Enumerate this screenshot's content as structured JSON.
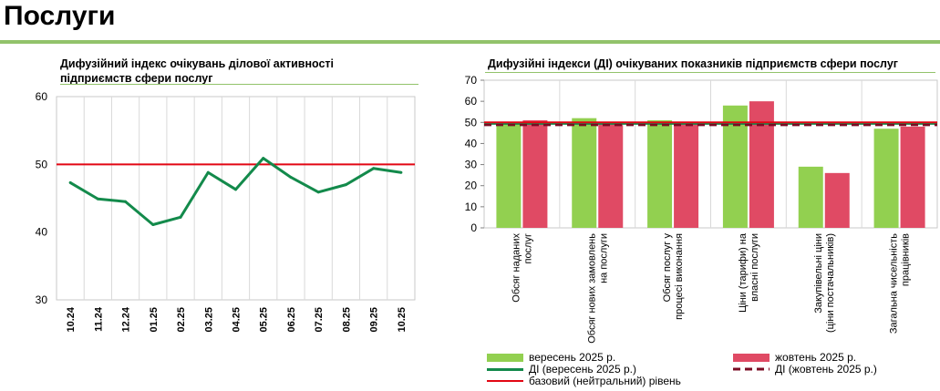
{
  "page": {
    "title": "Послуги"
  },
  "colors": {
    "green": "#92d050",
    "dark_green": "#138a4b",
    "red": "#e20613",
    "pink": "#e04a64",
    "dark_red": "#7a0b23",
    "accent_rule": "#92c36b"
  },
  "chart_data": [
    {
      "type": "line",
      "title": "Дифузійний індекс очікувань ділової активності підприємств сфери послуг",
      "title_lines": [
        "Дифузійний індекс очікувань ділової активності",
        "підприємств сфери послуг"
      ],
      "categories": [
        "10.24",
        "11.24",
        "12.24",
        "01.25",
        "02.25",
        "03.25",
        "04.25",
        "05.25",
        "06.25",
        "07.25",
        "08.25",
        "09.25",
        "10.25"
      ],
      "series": [
        {
          "values": [
            47.3,
            44.9,
            44.5,
            41.1,
            42.2,
            48.8,
            46.3,
            50.9,
            48.1,
            45.9,
            47.0,
            49.4,
            48.8
          ]
        }
      ],
      "reference_line": 50,
      "ylim": [
        30,
        60
      ],
      "yticks": [
        30,
        40,
        50,
        60
      ],
      "grid": "vertical"
    },
    {
      "type": "bar",
      "title": "Дифузійні індекси (ДІ) очікуваних показників підприємств сфери послуг",
      "categories": [
        [
          "Обсяг наданих",
          "послуг"
        ],
        [
          "Обсяг нових замовлень",
          "на послуги"
        ],
        [
          "Обсяг послуг у",
          "процесі виконання"
        ],
        [
          "Ціни (тарифи) на",
          "власні послуги"
        ],
        [
          "Закупівельні ціни",
          "(ціни постачальників)"
        ],
        [
          "Загальна чисельність",
          "працівників"
        ]
      ],
      "series": [
        {
          "name": "вересень 2025 р.",
          "values": [
            50.0,
            52.0,
            51.0,
            58.0,
            29.0,
            47.0
          ]
        },
        {
          "name": "жовтень 2025 р.",
          "values": [
            51.0,
            50.0,
            50.0,
            60.0,
            26.0,
            48.0
          ]
        }
      ],
      "lines": [
        {
          "name": "ДІ (вересень 2025 р.)",
          "value": 49.4
        },
        {
          "name": "ДІ (жовтень 2025 р.)",
          "value": 48.8
        }
      ],
      "reference_line": {
        "name": "базовий (нейтральний) рівень",
        "value": 50
      },
      "ylim": [
        0,
        70
      ],
      "yticks": [
        0,
        10,
        20,
        30,
        40,
        50,
        60,
        70
      ],
      "grid": "vertical"
    }
  ]
}
